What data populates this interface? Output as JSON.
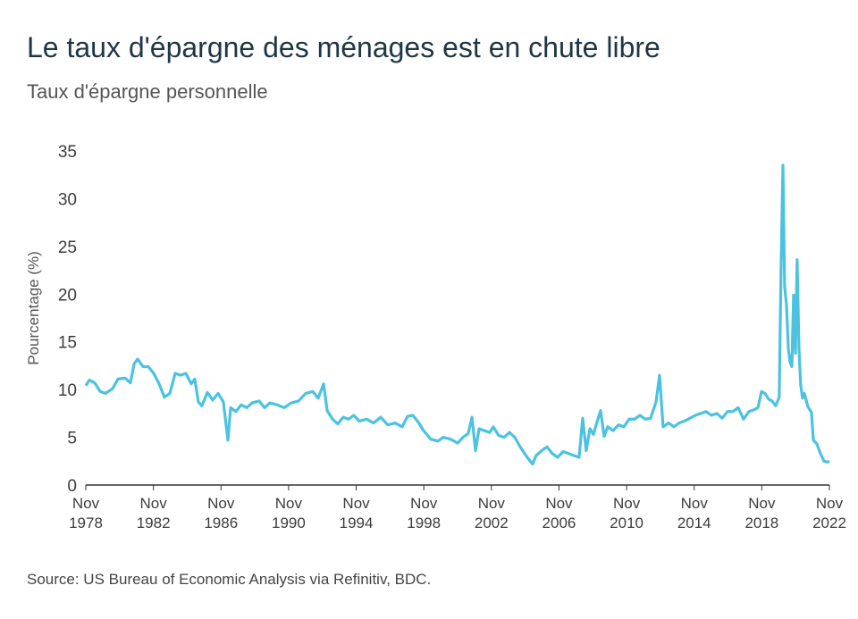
{
  "chart_data": {
    "type": "line",
    "title": "Le taux d'épargne des ménages est en chute libre",
    "subtitle": "Taux d'épargne personnelle",
    "y_label": "Pourcentage (%)",
    "source": "Source: US Bureau of Economic Analysis via Refinitiv, BDC.",
    "xlim": [
      1978.83,
      2022.83
    ],
    "xticks": [
      {
        "value": 1978.83,
        "label": "Nov 1978"
      },
      {
        "value": 1982.83,
        "label": "Nov 1982"
      },
      {
        "value": 1986.83,
        "label": "Nov 1986"
      },
      {
        "value": 1990.83,
        "label": "Nov 1990"
      },
      {
        "value": 1994.83,
        "label": "Nov 1994"
      },
      {
        "value": 1998.83,
        "label": "Nov 1998"
      },
      {
        "value": 2002.83,
        "label": "Nov 2002"
      },
      {
        "value": 2006.83,
        "label": "Nov 2006"
      },
      {
        "value": 2010.83,
        "label": "Nov 2010"
      },
      {
        "value": 2014.83,
        "label": "Nov 2014"
      },
      {
        "value": 2018.83,
        "label": "Nov 2018"
      },
      {
        "value": 2022.83,
        "label": "Nov 2022"
      }
    ],
    "ylim": [
      0,
      35
    ],
    "yticks": [
      0,
      5,
      10,
      15,
      20,
      25,
      30,
      35
    ],
    "grid": false,
    "x": [
      1978.83,
      1979.04,
      1979.36,
      1979.68,
      1979.99,
      1980.42,
      1980.73,
      1981.16,
      1981.47,
      1981.69,
      1981.9,
      1982.21,
      1982.53,
      1982.85,
      1983.17,
      1983.48,
      1983.8,
      1984.12,
      1984.44,
      1984.75,
      1985.07,
      1985.28,
      1985.49,
      1985.7,
      1986.02,
      1986.34,
      1986.66,
      1986.97,
      1987.24,
      1987.4,
      1987.71,
      1988.03,
      1988.35,
      1988.67,
      1989.09,
      1989.41,
      1989.72,
      1990.15,
      1990.57,
      1990.99,
      1991.42,
      1991.84,
      1992.26,
      1992.58,
      1992.9,
      1993.11,
      1993.43,
      1993.74,
      1994.06,
      1994.38,
      1994.69,
      1995.01,
      1995.44,
      1995.86,
      1996.28,
      1996.7,
      1997.13,
      1997.55,
      1997.87,
      1998.18,
      1998.5,
      1998.82,
      1999.24,
      1999.67,
      1999.98,
      2000.41,
      2000.83,
      2001.15,
      2001.46,
      2001.68,
      2001.89,
      2002.1,
      2002.42,
      2002.73,
      2002.94,
      2003.26,
      2003.58,
      2003.9,
      2004.21,
      2004.53,
      2004.95,
      2005.27,
      2005.48,
      2005.8,
      2006.12,
      2006.43,
      2006.75,
      2007.07,
      2007.39,
      2007.7,
      2008.02,
      2008.23,
      2008.44,
      2008.66,
      2008.87,
      2009.08,
      2009.29,
      2009.5,
      2009.71,
      2010.03,
      2010.35,
      2010.67,
      2010.98,
      2011.3,
      2011.62,
      2011.94,
      2012.25,
      2012.57,
      2012.78,
      2012.99,
      2013.31,
      2013.63,
      2013.94,
      2014.26,
      2014.58,
      2014.9,
      2015.21,
      2015.53,
      2015.85,
      2016.17,
      2016.48,
      2016.8,
      2017.12,
      2017.43,
      2017.75,
      2018.07,
      2018.39,
      2018.6,
      2018.81,
      2019.02,
      2019.23,
      2019.44,
      2019.65,
      2019.86,
      2019.97,
      2020.08,
      2020.18,
      2020.29,
      2020.4,
      2020.5,
      2020.61,
      2020.71,
      2020.82,
      2020.92,
      2021.03,
      2021.13,
      2021.24,
      2021.35,
      2021.56,
      2021.77,
      2021.88,
      2022.09,
      2022.3,
      2022.51,
      2022.72,
      2022.83
    ],
    "series": [
      {
        "name": "Taux d'épargne personnelle",
        "color": "#4bc3e0",
        "values": [
          10.4,
          11.0,
          10.7,
          9.8,
          9.6,
          10.1,
          11.1,
          11.2,
          10.7,
          12.7,
          13.2,
          12.4,
          12.4,
          11.7,
          10.6,
          9.2,
          9.6,
          11.7,
          11.5,
          11.7,
          10.6,
          11.1,
          8.7,
          8.3,
          9.7,
          8.9,
          9.6,
          8.7,
          4.7,
          8.1,
          7.7,
          8.4,
          8.1,
          8.6,
          8.8,
          8.1,
          8.6,
          8.4,
          8.1,
          8.6,
          8.8,
          9.6,
          9.8,
          9.1,
          10.6,
          7.8,
          6.9,
          6.4,
          7.1,
          6.9,
          7.3,
          6.7,
          6.9,
          6.5,
          7.1,
          6.3,
          6.5,
          6.1,
          7.2,
          7.3,
          6.6,
          5.7,
          4.8,
          4.6,
          5.0,
          4.8,
          4.4,
          5.0,
          5.4,
          7.1,
          3.6,
          5.9,
          5.7,
          5.5,
          6.1,
          5.2,
          5.0,
          5.5,
          5.0,
          4.0,
          2.9,
          2.2,
          3.1,
          3.6,
          4.0,
          3.3,
          2.9,
          3.5,
          3.3,
          3.1,
          2.9,
          7.0,
          3.6,
          5.9,
          5.3,
          6.6,
          7.8,
          5.1,
          6.1,
          5.7,
          6.3,
          6.1,
          6.9,
          6.9,
          7.3,
          6.9,
          7.0,
          8.7,
          11.5,
          6.1,
          6.5,
          6.1,
          6.5,
          6.7,
          7.0,
          7.3,
          7.5,
          7.7,
          7.3,
          7.5,
          7.0,
          7.7,
          7.7,
          8.1,
          6.9,
          7.7,
          7.9,
          8.1,
          9.8,
          9.6,
          9.0,
          8.8,
          8.3,
          9.2,
          22.7,
          33.5,
          20.8,
          18.9,
          14.3,
          12.9,
          12.4,
          19.9,
          13.8,
          23.6,
          14.3,
          10.5,
          9.1,
          9.6,
          8.2,
          7.6,
          4.7,
          4.3,
          3.3,
          2.5,
          2.4,
          2.5
        ]
      }
    ]
  }
}
